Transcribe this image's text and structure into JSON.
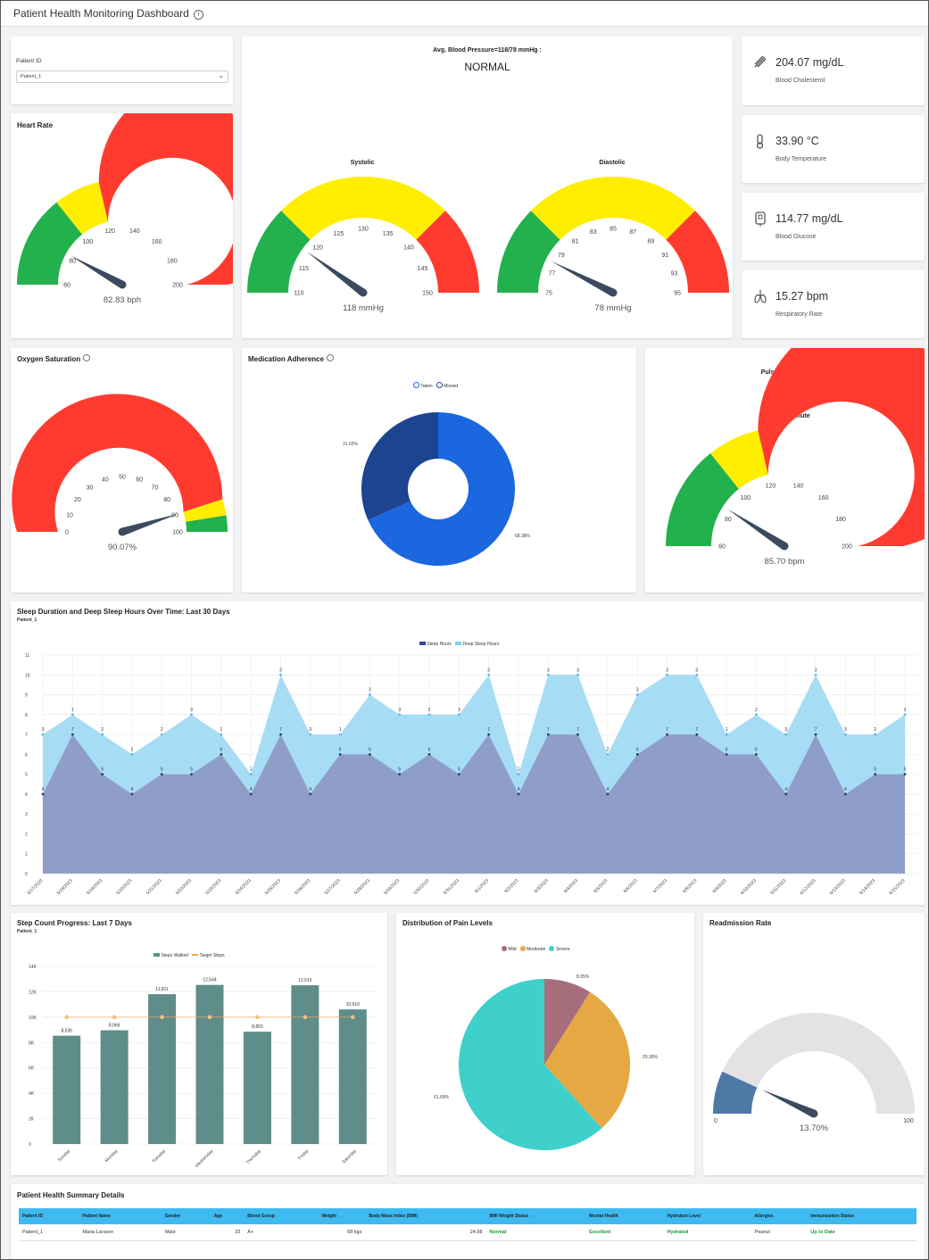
{
  "header": {
    "title": "Patient Health Monitoring Dashboard",
    "info_icon": "info-icon"
  },
  "patient_select": {
    "label": "Patient ID",
    "value": "Patient_1"
  },
  "blood_pressure": {
    "avg_label": "Avg. Blood Pressure=118/78 mmHg :",
    "status": "NORMAL",
    "systolic": {
      "title": "Systolic",
      "value": 118,
      "value_label": "118 mmHg",
      "min": 110,
      "max": 150,
      "ticks": [
        "110",
        "115",
        "120",
        "125",
        "130",
        "135",
        "140",
        "145",
        "150"
      ]
    },
    "diastolic": {
      "title": "Diastolic",
      "value": 78,
      "value_label": "78 mmHg",
      "min": 75,
      "max": 95,
      "ticks": [
        "75",
        "77",
        "79",
        "81",
        "83",
        "85",
        "87",
        "89",
        "91",
        "93",
        "95"
      ]
    }
  },
  "heart_rate": {
    "title": "Heart Rate",
    "value": 82.83,
    "value_label": "82.83 bph",
    "min": 60,
    "max": 200,
    "ticks": [
      "60",
      "80",
      "100",
      "120",
      "140",
      "160",
      "180",
      "200"
    ]
  },
  "kpis": [
    {
      "icon": "cholesterol-icon",
      "value": "204.07 mg/dL",
      "label": "Blood Cholesterol"
    },
    {
      "icon": "thermometer-icon",
      "value": "33.90 °C",
      "label": "Body Temperature"
    },
    {
      "icon": "glucose-meter-icon",
      "value": "114.77 mg/dL",
      "label": "Blood Glucose"
    },
    {
      "icon": "lungs-icon",
      "value": "15.27 bpm",
      "label": "Respiratory Rate"
    }
  ],
  "oxygen": {
    "title": "Oxygen Saturation",
    "value": 90.07,
    "value_label": "90.07%",
    "min": 0,
    "max": 100,
    "ticks": [
      "0",
      "10",
      "20",
      "30",
      "40",
      "50",
      "60",
      "70",
      "80",
      "90",
      "100"
    ]
  },
  "medication": {
    "title": "Medication Adherence",
    "legend": [
      "Taken",
      "Missed"
    ],
    "labels": [
      "68.38%",
      "31.62%"
    ]
  },
  "pulse": {
    "status": "Pulse: NORMAL",
    "title": "Beats per Minute",
    "value": 85.7,
    "value_label": "85.70 bpm",
    "min": 60,
    "max": 200,
    "ticks": [
      "60",
      "80",
      "100",
      "120",
      "140",
      "160",
      "180",
      "200"
    ]
  },
  "sleep": {
    "title": "Sleep Duration and Deep Sleep Hours Over Time: Last 30 Days",
    "subtitle": "Patient_1",
    "legend": [
      "Sleep Hours",
      "Deep Sleep Hours"
    ],
    "yticks": [
      "0",
      "1",
      "2",
      "3",
      "4",
      "5",
      "6",
      "7",
      "8",
      "9",
      "10",
      "11"
    ]
  },
  "steps": {
    "title": "Step Count Progress: Last 7 Days",
    "subtitle": "Patient_1",
    "legend": [
      "Steps Walked",
      "Target Steps"
    ],
    "yticks": [
      "0",
      "2K",
      "4K",
      "6K",
      "8K",
      "10K",
      "12K",
      "14K"
    ]
  },
  "pain": {
    "title": "Distribution of Pain Levels",
    "legend": [
      "Mild",
      "Moderate",
      "Severe"
    ],
    "labels": [
      "8.95%",
      "29.36%",
      "61.69%"
    ]
  },
  "readmission": {
    "title": "Readmission Rate",
    "value": 13.7,
    "value_label": "13.70%",
    "min_label": "0",
    "max_label": "100"
  },
  "summary": {
    "title": "Patient Health Summary Details",
    "columns": [
      "Patient ID",
      "Patient Name",
      "Gender",
      "Age",
      "Blood Group",
      "Weight",
      "Body Mass Index (BMI)",
      "BMI Weight Status",
      "Mental Health",
      "Hydration Level",
      "Allergies",
      "Immunization Status"
    ],
    "row": [
      "Patient_1",
      "Maria Larsson",
      "Male",
      "33",
      "A+",
      "68 kgs",
      "24.98",
      "Normal",
      "Excellent",
      "Hydrated",
      "Peanut",
      "Up to Date"
    ]
  },
  "chart_data": [
    {
      "type": "area",
      "title": "Sleep Duration and Deep Sleep Hours Over Time: Last 30 Days",
      "x": [
        "5/17/2023",
        "5/18/2023",
        "5/19/2023",
        "5/20/2023",
        "5/21/2023",
        "5/22/2023",
        "5/23/2023",
        "5/24/2023",
        "5/25/2023",
        "5/26/2023",
        "5/27/2023",
        "5/28/2023",
        "5/29/2023",
        "5/30/2023",
        "5/31/2023",
        "6/1/2023",
        "6/2/2023",
        "6/3/2023",
        "6/4/2023",
        "6/5/2023",
        "6/6/2023",
        "6/7/2023",
        "6/8/2023",
        "6/9/2023",
        "6/10/2023",
        "6/11/2023",
        "6/12/2023",
        "6/13/2023",
        "6/14/2023",
        "6/15/2023"
      ],
      "series": [
        {
          "name": "Sleep Hours",
          "values": [
            4,
            7,
            5,
            4,
            5,
            5,
            6,
            4,
            7,
            4,
            6,
            6,
            5,
            6,
            5,
            7,
            4,
            7,
            7,
            4,
            6,
            7,
            7,
            6,
            6,
            4,
            7,
            4,
            5,
            5
          ]
        },
        {
          "name": "Deep Sleep Hours",
          "values": [
            3,
            1,
            2,
            2,
            2,
            3,
            1,
            1,
            3,
            3,
            1,
            3,
            3,
            2,
            3,
            3,
            1,
            3,
            3,
            2,
            3,
            3,
            3,
            1,
            2,
            3,
            3,
            3,
            2,
            3
          ]
        }
      ],
      "ylim": [
        0,
        11
      ]
    },
    {
      "type": "bar",
      "title": "Step Count Progress: Last 7 Days",
      "categories": [
        "Sunday",
        "Monday",
        "Tuesday",
        "Wednesday",
        "Thursday",
        "Friday",
        "Saturday"
      ],
      "series": [
        {
          "name": "Steps Walked",
          "values": [
            8536,
            8966,
            11811,
            12544,
            8853,
            12515,
            10610
          ]
        },
        {
          "name": "Target Steps",
          "values": [
            10000,
            10000,
            10000,
            10000,
            10000,
            10000,
            10000
          ]
        }
      ],
      "value_labels": [
        "8,536",
        "8,966",
        "11,811",
        "12,544",
        "8,853",
        "12,515",
        "10,610"
      ],
      "ylim": [
        0,
        14000
      ]
    },
    {
      "type": "pie",
      "title": "Medication Adherence",
      "categories": [
        "Taken",
        "Missed"
      ],
      "values": [
        68.38,
        31.62
      ]
    },
    {
      "type": "pie",
      "title": "Distribution of Pain Levels",
      "categories": [
        "Mild",
        "Moderate",
        "Severe"
      ],
      "values": [
        8.95,
        29.36,
        61.69
      ]
    }
  ],
  "colors": {
    "green": "#22b14c",
    "yellow": "#ffee00",
    "red": "#ff3b30",
    "needle": "#3b4a5e",
    "sleep": "#8e9ec9",
    "deep": "#a7dcf5",
    "bar": "#5f8d89",
    "taken": "#1a67e0",
    "missed": "#1c4490",
    "mild": "#a66d7b",
    "moderate": "#e6a843",
    "severe": "#3fd0cc",
    "readmit": "#4e79a7",
    "gray": "#e3e3e3",
    "header": "#3fbaf0"
  }
}
